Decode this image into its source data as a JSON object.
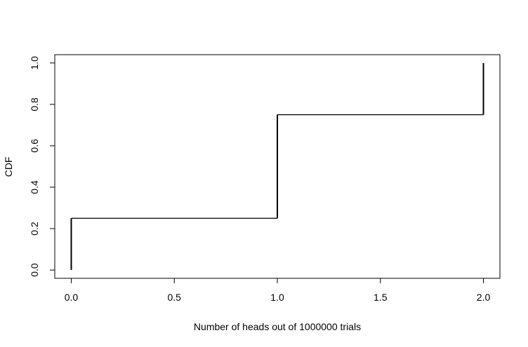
{
  "chart_data": {
    "type": "line",
    "step": true,
    "title": "",
    "xlabel": "Number of heads out of 1000000 trials",
    "ylabel": "CDF",
    "xlim": [
      -0.08,
      2.08
    ],
    "ylim": [
      -0.04,
      1.04
    ],
    "x_ticks": [
      0.0,
      0.5,
      1.0,
      1.5,
      2.0
    ],
    "x_tick_labels": [
      "0.0",
      "0.5",
      "1.0",
      "1.5",
      "2.0"
    ],
    "y_ticks": [
      0.0,
      0.2,
      0.4,
      0.6,
      0.8,
      1.0
    ],
    "y_tick_labels": [
      "0.0",
      "0.2",
      "0.4",
      "0.6",
      "0.8",
      "1.0"
    ],
    "grid": false,
    "series": [
      {
        "x": [
          0,
          0,
          1,
          1,
          2,
          2
        ],
        "y": [
          0,
          0.25,
          0.25,
          0.75,
          0.75,
          1.0
        ],
        "color": "#000000"
      }
    ]
  }
}
